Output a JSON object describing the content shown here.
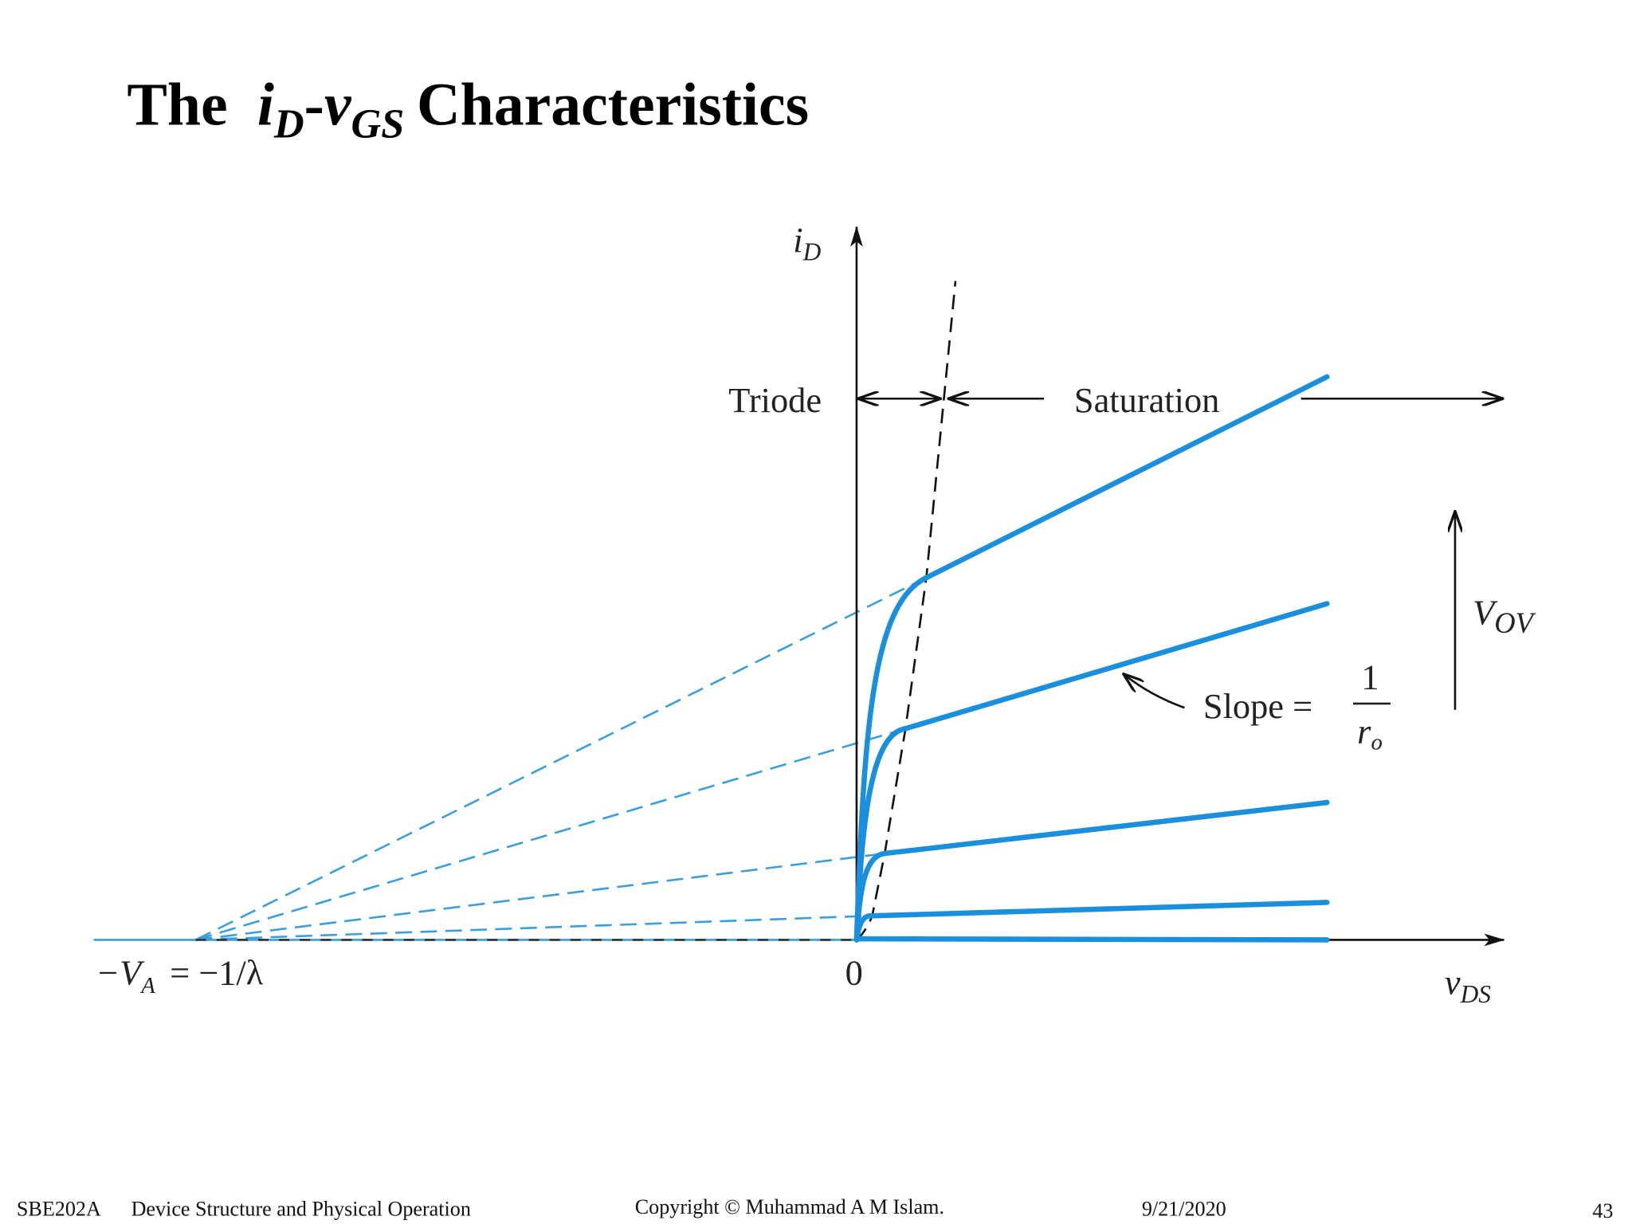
{
  "title": [
    "The",
    "i",
    "D",
    "-",
    "v",
    "GS",
    "Characteristics"
  ],
  "diagram": {
    "y_axis": {
      "symbol": "i",
      "sub": "D"
    },
    "x_axis": {
      "symbol": "v",
      "sub": "DS"
    },
    "origin": "0",
    "triode": "Triode",
    "saturation": "Saturation",
    "overdrive": {
      "symbol": "V",
      "sub": "OV"
    },
    "slope": {
      "text": "Slope =",
      "numerator": "1",
      "denominator": "r",
      "denominator_sub": "o"
    },
    "intercept": {
      "prefix": "−V",
      "sub": "A",
      "rest": "= −1/λ"
    }
  },
  "footer": {
    "course": "SBE202A",
    "topic": "Device Structure and Physical Operation",
    "copyright": "Copyright © Muhammad A M Islam.",
    "date": "9/21/2020",
    "page": "43"
  }
}
